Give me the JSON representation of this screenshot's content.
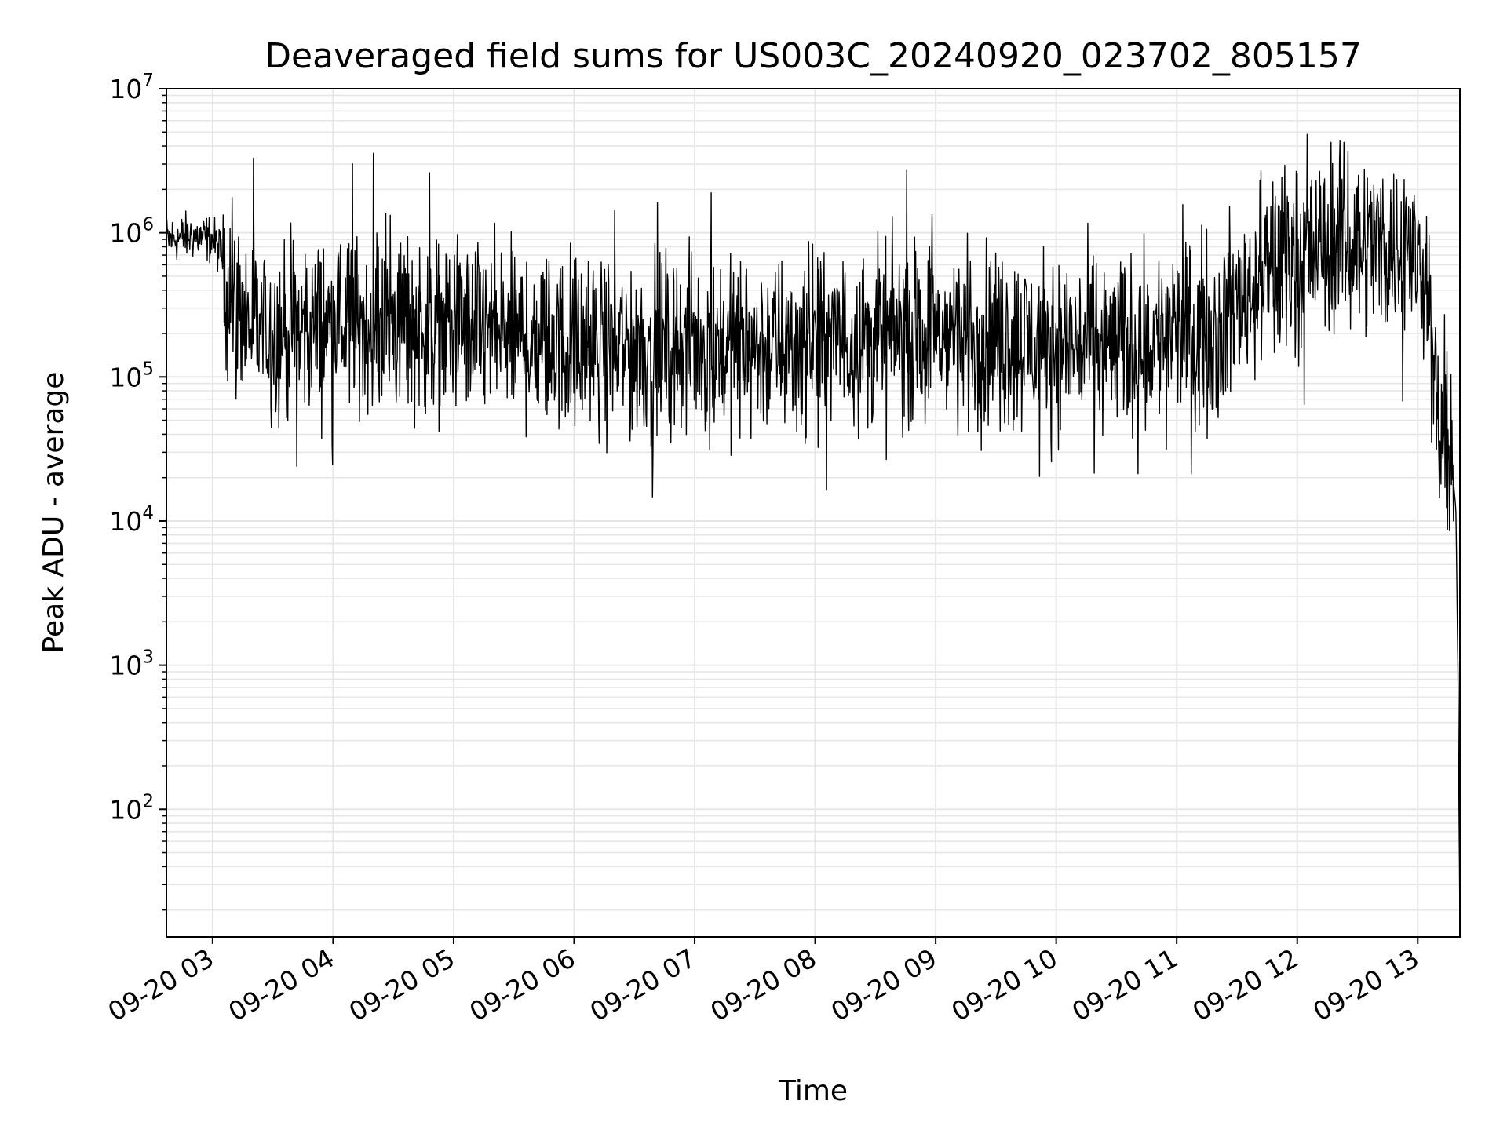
{
  "chart_data": {
    "type": "line",
    "title": "Deaveraged field sums for US003C_20240920_023702_805157",
    "xlabel": "Time",
    "ylabel": "Peak ADU - average",
    "yscale": "log",
    "ylim": [
      13,
      10000000
    ],
    "xlim": [
      "2024-09-20 02:37",
      "2024-09-20 13:21"
    ],
    "grid": true,
    "line_color": "#000000",
    "grid_color": "#e6e6e6",
    "xticks": [
      "2024-09-20 03:00",
      "2024-09-20 04:00",
      "2024-09-20 05:00",
      "2024-09-20 06:00",
      "2024-09-20 07:00",
      "2024-09-20 08:00",
      "2024-09-20 09:00",
      "2024-09-20 10:00",
      "2024-09-20 11:00",
      "2024-09-20 12:00",
      "2024-09-20 13:00"
    ],
    "xtick_labels": [
      "09-20 03",
      "09-20 04",
      "09-20 05",
      "09-20 06",
      "09-20 07",
      "09-20 08",
      "09-20 09",
      "09-20 10",
      "09-20 11",
      "09-20 12",
      "09-20 13"
    ],
    "yticks": [
      100,
      1000,
      10000,
      100000,
      1000000,
      10000000
    ],
    "ytick_labels": [
      {
        "base": "10",
        "exp": "2"
      },
      {
        "base": "10",
        "exp": "3"
      },
      {
        "base": "10",
        "exp": "4"
      },
      {
        "base": "10",
        "exp": "5"
      },
      {
        "base": "10",
        "exp": "6"
      },
      {
        "base": "10",
        "exp": "7"
      }
    ],
    "series": [
      {
        "x": [
          "2024-09-20 02:37",
          "2024-09-20 02:50",
          "2024-09-20 03:00",
          "2024-09-20 03:05",
          "2024-09-20 03:10",
          "2024-09-20 03:20",
          "2024-09-20 03:30",
          "2024-09-20 04:00",
          "2024-09-20 04:30",
          "2024-09-20 05:00",
          "2024-09-20 05:30",
          "2024-09-20 06:00",
          "2024-09-20 06:30",
          "2024-09-20 07:00",
          "2024-09-20 07:30",
          "2024-09-20 08:00",
          "2024-09-20 08:30",
          "2024-09-20 09:00",
          "2024-09-20 09:30",
          "2024-09-20 10:00",
          "2024-09-20 10:30",
          "2024-09-20 11:00",
          "2024-09-20 11:20",
          "2024-09-20 11:35",
          "2024-09-20 11:45",
          "2024-09-20 12:00",
          "2024-09-20 12:30",
          "2024-09-20 12:50",
          "2024-09-20 13:05",
          "2024-09-20 13:08",
          "2024-09-20 13:12",
          "2024-09-20 13:17",
          "2024-09-20 13:19",
          "2024-09-20 13:20",
          "2024-09-20 13:21"
        ],
        "y": [
          900000,
          950000,
          900000,
          700000,
          300000,
          220000,
          200000,
          230000,
          240000,
          220000,
          190000,
          160000,
          150000,
          170000,
          160000,
          170000,
          190000,
          200000,
          190000,
          170000,
          160000,
          200000,
          210000,
          400000,
          500000,
          700000,
          900000,
          800000,
          600000,
          80000,
          30000,
          25000,
          12000,
          1000,
          15
        ]
      }
    ]
  }
}
